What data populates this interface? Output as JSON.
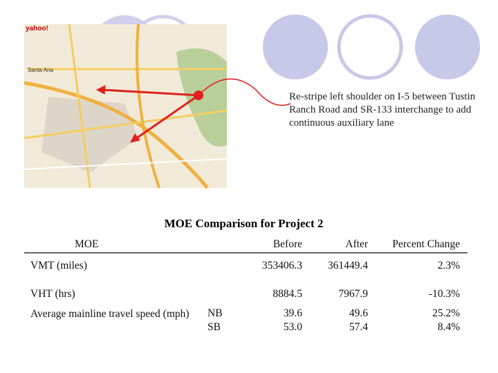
{
  "map": {
    "brand": "yahoo!",
    "city": "Santa Ana"
  },
  "annotation": "Re-stripe left shoulder on I-5 between Tustin Ranch Road and SR-133 interchange to add continuous auxiliary lane",
  "table": {
    "title": "MOE Comparison for Project 2",
    "headers": [
      "MOE",
      "Before",
      "After",
      "Percent Change"
    ],
    "rows": [
      {
        "label": "VMT (miles)",
        "before": "353406.3",
        "after": "361449.4",
        "change": "2.3%"
      },
      {
        "label": "VHT (hrs)",
        "before": "8884.5",
        "after": "7967.9",
        "change": "-10.3%"
      }
    ],
    "speed": {
      "label": "Average mainline travel speed (mph)",
      "directions": [
        {
          "dir": "NB",
          "before": "39.6",
          "after": "49.6",
          "change": "25.2%"
        },
        {
          "dir": "SB",
          "before": "53.0",
          "after": "57.4",
          "change": "8.4%"
        }
      ]
    }
  }
}
